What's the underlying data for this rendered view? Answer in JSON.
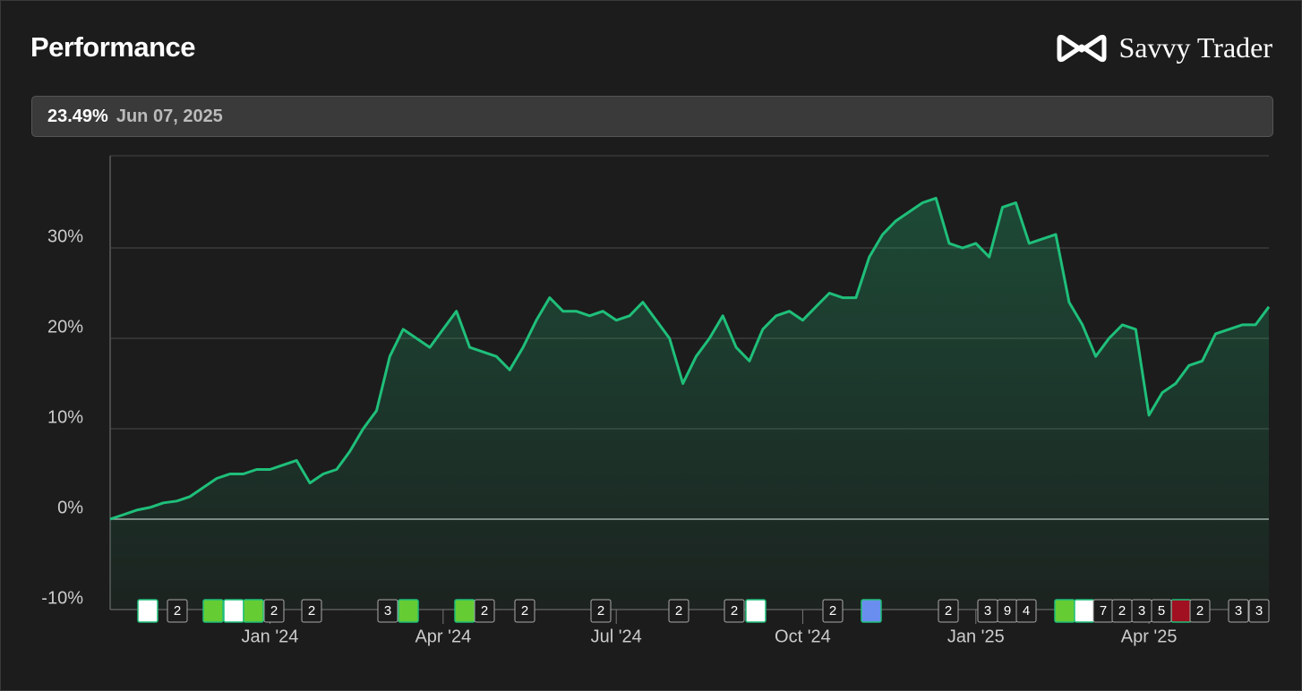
{
  "header": {
    "title": "Performance",
    "brand": "Savvy Trader",
    "current_value": "23.49%",
    "current_date": "Jun 07, 2025"
  },
  "chart_data": {
    "type": "line",
    "categories": [
      null,
      null,
      null,
      null,
      null,
      null,
      null,
      null,
      null,
      null,
      null,
      null,
      "Jan '24",
      null,
      null,
      null,
      null,
      null,
      null,
      null,
      null,
      null,
      null,
      null,
      null,
      "Apr '24",
      null,
      null,
      null,
      null,
      null,
      null,
      null,
      null,
      null,
      null,
      null,
      null,
      "Jul '24",
      null,
      null,
      null,
      null,
      null,
      null,
      null,
      null,
      null,
      null,
      null,
      null,
      null,
      "Oct '24",
      null,
      null,
      null,
      null,
      null,
      null,
      null,
      null,
      null,
      null,
      null,
      null,
      "Jan '25",
      null,
      null,
      null,
      null,
      null,
      null,
      null,
      null,
      null,
      null,
      null,
      null,
      "Apr '25",
      null,
      null,
      null,
      null,
      null,
      null,
      null,
      null,
      null
    ],
    "series": [
      {
        "name": "Performance",
        "color": "#1fbf7a",
        "values": [
          0,
          0.5,
          1,
          1.3,
          1.8,
          2,
          2.5,
          3.5,
          4.5,
          5,
          5,
          5.5,
          5.5,
          6,
          6.5,
          4,
          5,
          5.5,
          7.5,
          10,
          12,
          18,
          21,
          20,
          19,
          21,
          23,
          19,
          18.5,
          18,
          16.5,
          19,
          22,
          24.5,
          23,
          23,
          22.5,
          23,
          22,
          22.5,
          24,
          22,
          20,
          15,
          18,
          20,
          22.5,
          19,
          17.5,
          21,
          22.5,
          23,
          22,
          23.5,
          25,
          24.5,
          24.5,
          29,
          31.5,
          33,
          34,
          35,
          35.5,
          30.5,
          30,
          30.5,
          29,
          34.5,
          35,
          30.5,
          31,
          31.5,
          24,
          21.5,
          18,
          20,
          21.5,
          21,
          11.5,
          14,
          15,
          17,
          17.5,
          20.5,
          21,
          21.5,
          21.5,
          23.49
        ]
      }
    ],
    "ylim": [
      -10,
      40
    ],
    "yticks": [
      {
        "value": -10,
        "label": "-10%"
      },
      {
        "value": 0,
        "label": "0%"
      },
      {
        "value": 10,
        "label": "10%"
      },
      {
        "value": 20,
        "label": "20%"
      },
      {
        "value": 30,
        "label": "30%"
      }
    ],
    "grid": true,
    "event_badges": [
      "2",
      "2",
      "2",
      "3",
      "2",
      "2",
      "2",
      "2",
      "2",
      "2",
      "2",
      "3",
      "9",
      "4",
      "7",
      "2",
      "3",
      "5",
      "2",
      "3",
      "3"
    ]
  }
}
